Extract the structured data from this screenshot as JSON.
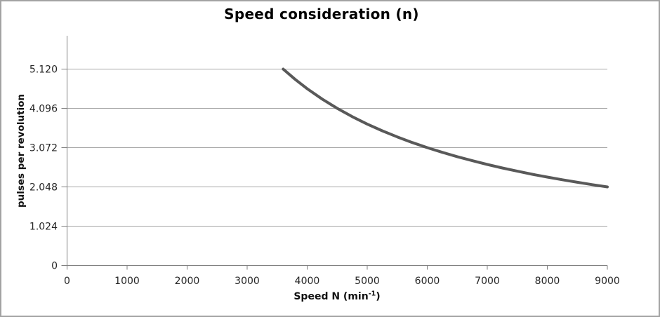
{
  "chart": {
    "title": "Speed consideration (n)",
    "ylabel": "pulses per revolution",
    "xlabel_parts": {
      "prefix": "Speed N (min",
      "superscript": "-1",
      "suffix": ")"
    }
  },
  "chart_data": {
    "type": "line",
    "title": "Speed consideration (n)",
    "xlabel": "Speed N (min⁻¹)",
    "ylabel": "pulses per revolution",
    "xlim": [
      0,
      9000
    ],
    "ylim": [
      0,
      6000
    ],
    "x_ticks": [
      0,
      1000,
      2000,
      3000,
      4000,
      5000,
      6000,
      7000,
      8000,
      9000
    ],
    "x_tick_labels": [
      "0",
      "1000",
      "2000",
      "3000",
      "4000",
      "5000",
      "6000",
      "7000",
      "8000",
      "9000"
    ],
    "y_ticks": [
      0,
      1024,
      2048,
      3072,
      4096,
      5120
    ],
    "y_tick_labels": [
      "0",
      "1.024",
      "2.048",
      "3.072",
      "4.096",
      "5.120"
    ],
    "grid": "horizontal-only",
    "legend": "none",
    "series": [
      {
        "name": "pulses per revolution",
        "color": "#595959",
        "points": [
          [
            3600,
            5120
          ],
          [
            3800,
            4851
          ],
          [
            4000,
            4608
          ],
          [
            4250,
            4337
          ],
          [
            4500,
            4096
          ],
          [
            4750,
            3880
          ],
          [
            5000,
            3686
          ],
          [
            5250,
            3511
          ],
          [
            5500,
            3351
          ],
          [
            5750,
            3206
          ],
          [
            6000,
            3072
          ],
          [
            6250,
            2949
          ],
          [
            6500,
            2836
          ],
          [
            6750,
            2731
          ],
          [
            7000,
            2633
          ],
          [
            7250,
            2542
          ],
          [
            7500,
            2458
          ],
          [
            7750,
            2378
          ],
          [
            8000,
            2304
          ],
          [
            8250,
            2234
          ],
          [
            8500,
            2168
          ],
          [
            8750,
            2107
          ],
          [
            9000,
            2048
          ]
        ]
      }
    ]
  },
  "colors": {
    "curve": "#595959",
    "gridline": "#a6a6a6",
    "axis": "#808080",
    "tick_text": "#262626",
    "title_text": "#000000",
    "frame_border": "#a3a3a3",
    "background": "#ffffff"
  }
}
